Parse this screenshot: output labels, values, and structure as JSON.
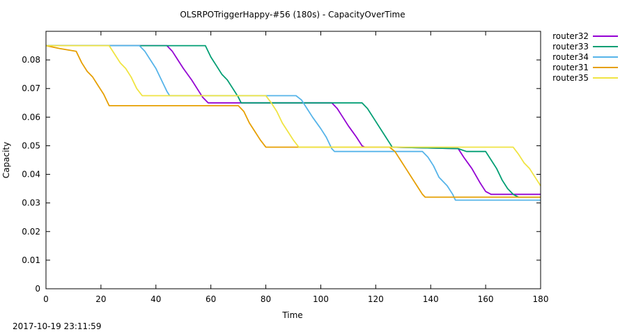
{
  "timestamp": "2017-10-19 23:11:59",
  "chart_data": {
    "type": "line",
    "title": "OLSRPOTriggerHappy-#56 (180s) - CapacityOverTime",
    "xlabel": "Time",
    "ylabel": "Capacity",
    "xlim": [
      0,
      180
    ],
    "ylim": [
      0,
      0.09
    ],
    "xticks": [
      "0",
      "20",
      "40",
      "60",
      "80",
      "100",
      "120",
      "140",
      "160",
      "180"
    ],
    "yticks": [
      "0",
      "0.01",
      "0.02",
      "0.03",
      "0.04",
      "0.05",
      "0.06",
      "0.07",
      "0.08"
    ],
    "grid": false,
    "legend_position": "outside-top-right",
    "series": [
      {
        "name": "router32",
        "color": "#9400d3",
        "points": [
          [
            0,
            0.085
          ],
          [
            44,
            0.085
          ],
          [
            46,
            0.083
          ],
          [
            48,
            0.08
          ],
          [
            50,
            0.077
          ],
          [
            53,
            0.073
          ],
          [
            55,
            0.07
          ],
          [
            57,
            0.067
          ],
          [
            59,
            0.065
          ],
          [
            71,
            0.065
          ],
          [
            104,
            0.065
          ],
          [
            106,
            0.063
          ],
          [
            108,
            0.06
          ],
          [
            110,
            0.057
          ],
          [
            113,
            0.053
          ],
          [
            115,
            0.05
          ],
          [
            116,
            0.0495
          ],
          [
            126,
            0.0495
          ],
          [
            150,
            0.049
          ],
          [
            152,
            0.046
          ],
          [
            155,
            0.042
          ],
          [
            158,
            0.037
          ],
          [
            160,
            0.034
          ],
          [
            162,
            0.033
          ],
          [
            180,
            0.033
          ]
        ]
      },
      {
        "name": "router33",
        "color": "#009e73",
        "points": [
          [
            0,
            0.085
          ],
          [
            58,
            0.085
          ],
          [
            60,
            0.081
          ],
          [
            62,
            0.078
          ],
          [
            64,
            0.075
          ],
          [
            66,
            0.073
          ],
          [
            68,
            0.07
          ],
          [
            70,
            0.067
          ],
          [
            71,
            0.065
          ],
          [
            115,
            0.065
          ],
          [
            117,
            0.063
          ],
          [
            119,
            0.06
          ],
          [
            121,
            0.057
          ],
          [
            123,
            0.054
          ],
          [
            125,
            0.051
          ],
          [
            126,
            0.0495
          ],
          [
            150,
            0.049
          ],
          [
            153,
            0.048
          ],
          [
            160,
            0.048
          ],
          [
            162,
            0.045
          ],
          [
            164,
            0.042
          ],
          [
            166,
            0.038
          ],
          [
            168,
            0.035
          ],
          [
            170,
            0.033
          ],
          [
            172,
            0.032
          ],
          [
            180,
            0.032
          ]
        ]
      },
      {
        "name": "router34",
        "color": "#56b4e9",
        "points": [
          [
            0,
            0.085
          ],
          [
            34,
            0.085
          ],
          [
            36,
            0.083
          ],
          [
            38,
            0.08
          ],
          [
            40,
            0.077
          ],
          [
            42,
            0.073
          ],
          [
            44,
            0.069
          ],
          [
            45,
            0.0675
          ],
          [
            79,
            0.0675
          ],
          [
            91,
            0.0675
          ],
          [
            93,
            0.066
          ],
          [
            95,
            0.063
          ],
          [
            97,
            0.06
          ],
          [
            100,
            0.056
          ],
          [
            102,
            0.053
          ],
          [
            104,
            0.049
          ],
          [
            105,
            0.048
          ],
          [
            126,
            0.048
          ],
          [
            137,
            0.048
          ],
          [
            139,
            0.046
          ],
          [
            141,
            0.043
          ],
          [
            143,
            0.039
          ],
          [
            146,
            0.036
          ],
          [
            148,
            0.033
          ],
          [
            149,
            0.031
          ],
          [
            180,
            0.031
          ]
        ]
      },
      {
        "name": "router31",
        "color": "#e69f00",
        "points": [
          [
            0,
            0.085
          ],
          [
            5,
            0.084
          ],
          [
            11,
            0.083
          ],
          [
            13,
            0.079
          ],
          [
            15,
            0.076
          ],
          [
            17,
            0.074
          ],
          [
            19,
            0.071
          ],
          [
            21,
            0.068
          ],
          [
            23,
            0.064
          ],
          [
            70,
            0.064
          ],
          [
            72,
            0.062
          ],
          [
            74,
            0.058
          ],
          [
            76,
            0.055
          ],
          [
            78,
            0.052
          ],
          [
            80,
            0.0495
          ],
          [
            104,
            0.0495
          ],
          [
            125,
            0.0495
          ],
          [
            127,
            0.048
          ],
          [
            129,
            0.045
          ],
          [
            131,
            0.042
          ],
          [
            133,
            0.039
          ],
          [
            135,
            0.036
          ],
          [
            137,
            0.033
          ],
          [
            138,
            0.032
          ],
          [
            180,
            0.032
          ]
        ]
      },
      {
        "name": "router35",
        "color": "#f0e442",
        "points": [
          [
            0,
            0.085
          ],
          [
            23,
            0.085
          ],
          [
            25,
            0.082
          ],
          [
            27,
            0.079
          ],
          [
            29,
            0.077
          ],
          [
            31,
            0.074
          ],
          [
            33,
            0.07
          ],
          [
            35,
            0.0675
          ],
          [
            80,
            0.0675
          ],
          [
            82,
            0.065
          ],
          [
            84,
            0.062
          ],
          [
            86,
            0.058
          ],
          [
            88,
            0.055
          ],
          [
            90,
            0.052
          ],
          [
            92,
            0.0495
          ],
          [
            126,
            0.0495
          ],
          [
            170,
            0.0495
          ],
          [
            172,
            0.047
          ],
          [
            174,
            0.044
          ],
          [
            176,
            0.042
          ],
          [
            178,
            0.039
          ],
          [
            180,
            0.036
          ]
        ]
      }
    ]
  }
}
